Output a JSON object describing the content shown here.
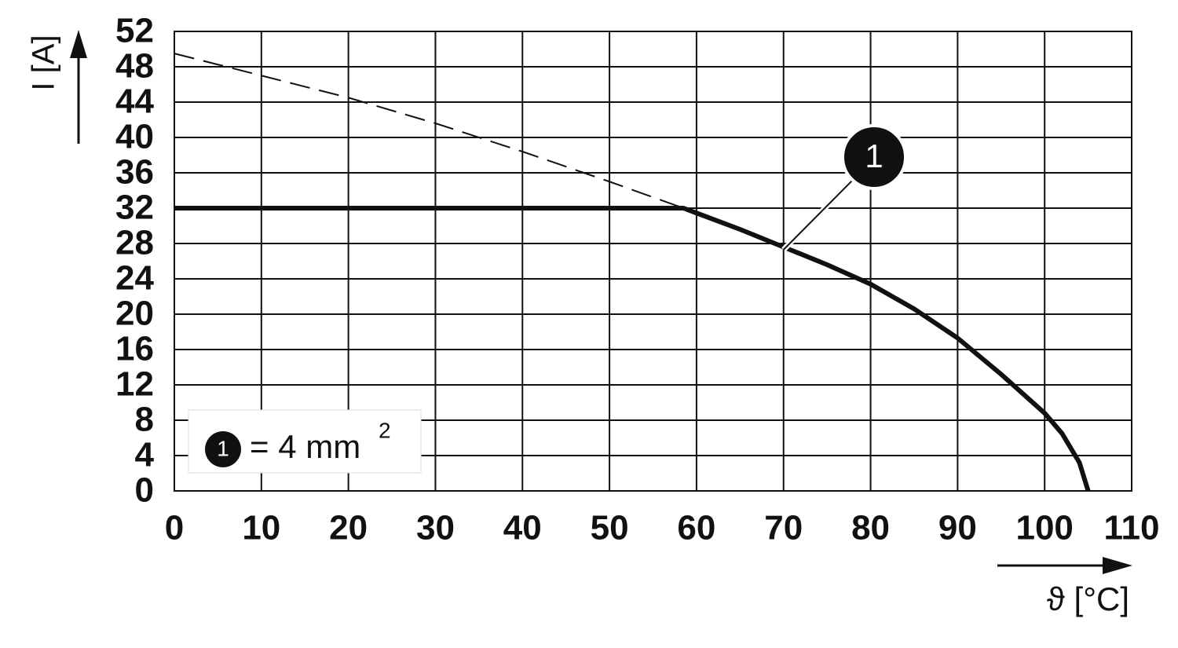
{
  "chart_data": {
    "type": "line",
    "xlabel": "ϑ [°C]",
    "ylabel": "I [A]",
    "xlim": [
      0,
      110
    ],
    "xticks": [
      0,
      10,
      20,
      30,
      40,
      50,
      60,
      70,
      80,
      90,
      100,
      110
    ],
    "ylim": [
      0,
      52
    ],
    "yticks": [
      0,
      4,
      8,
      12,
      16,
      20,
      24,
      28,
      32,
      36,
      40,
      44,
      48,
      52
    ],
    "grid": true,
    "series": [
      {
        "color": "#111111",
        "style": "solid",
        "x": [
          0,
          58.5,
          65,
          70,
          75,
          80,
          85,
          90,
          95,
          100,
          102,
          104,
          105
        ],
        "values": [
          32,
          32,
          29.6,
          27.6,
          25.6,
          23.4,
          20.6,
          17.3,
          13.2,
          8.8,
          6.5,
          3.2,
          0
        ]
      },
      {
        "color": "#111111",
        "style": "dashed",
        "x": [
          0,
          10,
          20,
          30,
          40,
          50,
          58.5
        ],
        "values": [
          49.5,
          47,
          44.5,
          41.6,
          38.4,
          35,
          32
        ]
      }
    ],
    "annotation": {
      "label": "1",
      "x": 70,
      "y": 27.3
    },
    "legend": {
      "marker": "1",
      "text": "= 4 mm",
      "superscript": "2"
    }
  }
}
